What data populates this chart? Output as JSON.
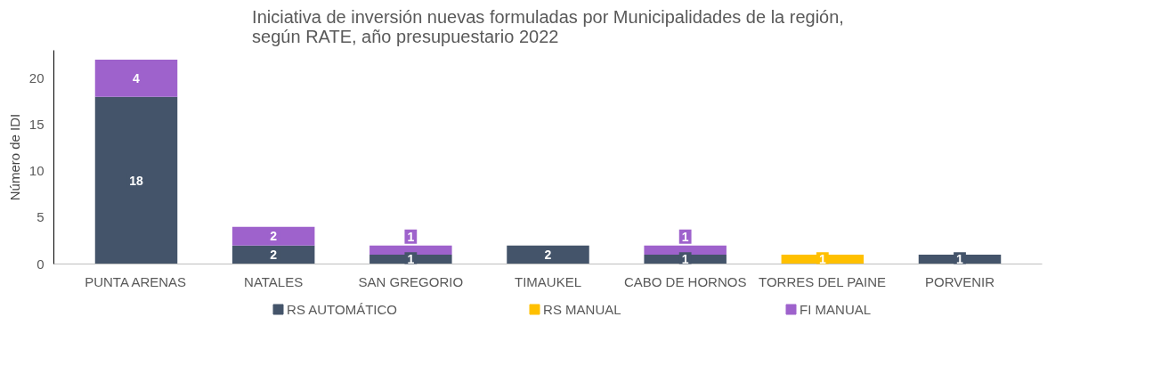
{
  "chart_data": {
    "type": "bar",
    "stacked": true,
    "title": "Iniciativa de inversión nuevas formuladas por Municipalidades de la región, según RATE, año presupuestario 2022",
    "ylabel": "Número de IDI",
    "categories": [
      "PUNTA ARENAS",
      "NATALES",
      "SAN GREGORIO",
      "TIMAUKEL",
      "CABO DE HORNOS",
      "TORRES DEL PAINE",
      "PORVENIR"
    ],
    "series": [
      {
        "name": "RS AUTOMÁTICO",
        "color": "#44546a",
        "values": [
          18,
          2,
          1,
          2,
          1,
          null,
          1
        ]
      },
      {
        "name": "RS MANUAL",
        "color": "#ffc000",
        "values": [
          null,
          null,
          null,
          null,
          null,
          1,
          null
        ]
      },
      {
        "name": "FI MANUAL",
        "color": "#9e62cc",
        "values": [
          4,
          2,
          1,
          null,
          1,
          null,
          null
        ]
      }
    ],
    "ylim": [
      0,
      23
    ],
    "yticks": [
      0,
      5,
      10,
      15,
      20
    ],
    "grid": false,
    "legend": "bottom",
    "data_labels": true
  }
}
